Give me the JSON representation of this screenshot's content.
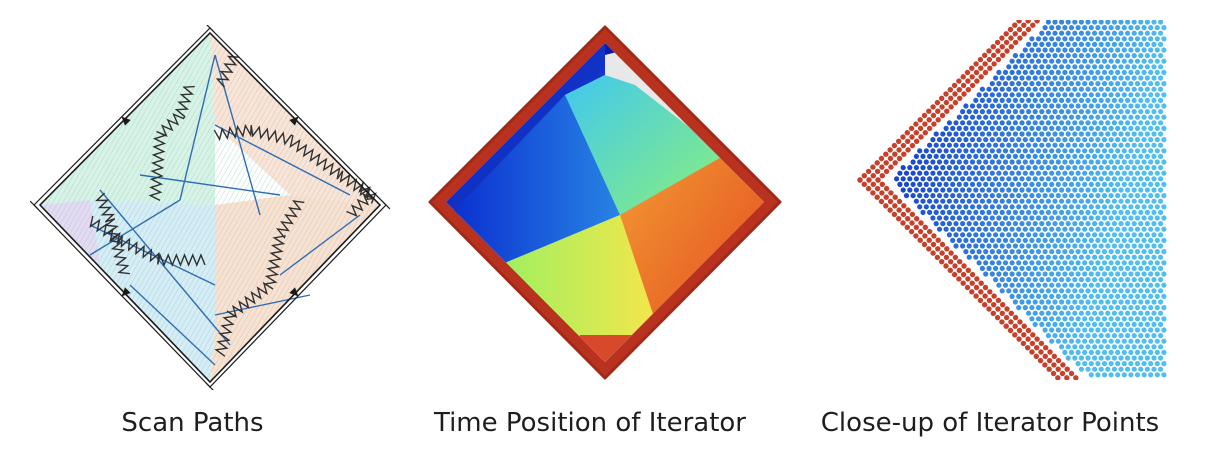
{
  "figure": {
    "panels": [
      {
        "id": "scan-paths",
        "caption": "Scan Paths"
      },
      {
        "id": "time-position",
        "caption": "Time Position of Iterator"
      },
      {
        "id": "closeup",
        "caption": "Close-up of Iterator Points"
      }
    ]
  },
  "colors": {
    "border_red": "#b8321f",
    "dot_red": "#c8402a",
    "dark_blue": "#0a14a8",
    "path_blue": "#2f6db3",
    "zigzag": "#303030",
    "outline": "#1a1a1a"
  }
}
